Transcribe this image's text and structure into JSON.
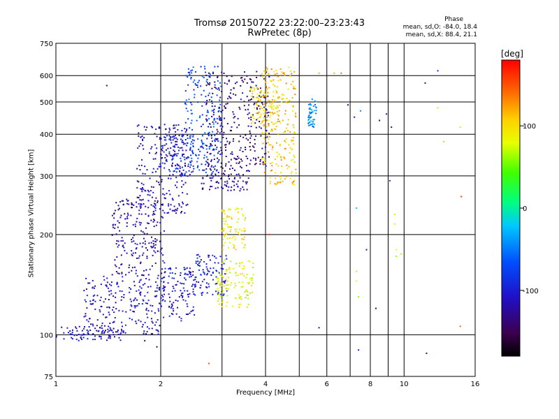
{
  "chart_data": {
    "type": "scatter",
    "title": "Tromsø 20150722 23:22:00–23:23:43",
    "subtitle": "RwPretec (8p)",
    "xlabel": "Frequency [MHz]",
    "ylabel": "Stationary phase Virtual Height [km]",
    "xscale": "log",
    "yscale": "log",
    "xlim": [
      1,
      16
    ],
    "ylim": [
      75,
      750
    ],
    "x_ticks": [
      "1",
      "2",
      "4",
      "6",
      "8",
      "10",
      "16"
    ],
    "x_tick_values": [
      1,
      2,
      4,
      6,
      8,
      10,
      16
    ],
    "y_ticks": [
      "75",
      "100",
      "200",
      "300",
      "400",
      "500",
      "600",
      "750"
    ],
    "y_tick_values": [
      75,
      100,
      200,
      300,
      400,
      500,
      600,
      750
    ],
    "grid": true,
    "phase_legend": {
      "title": "Phase",
      "o_line": "mean, sd,O: -84.0, 18.4",
      "x_line": "mean, sd,X:  88.4, 21.1"
    },
    "colorbar": {
      "unit": "[deg]",
      "range": [
        -180,
        180
      ],
      "ticks": [
        "100",
        "0",
        "-100"
      ],
      "tick_values": [
        100,
        0,
        -100
      ]
    },
    "clusters": [
      {
        "phase": -110,
        "x": [
          1.0,
          1.55
        ],
        "y": [
          96,
          106
        ]
      },
      {
        "phase": -110,
        "x": [
          1.2,
          2.05
        ],
        "y": [
          100,
          150
        ]
      },
      {
        "phase": -120,
        "x": [
          1.45,
          2.05
        ],
        "y": [
          150,
          260
        ]
      },
      {
        "phase": -115,
        "x": [
          1.7,
          2.4
        ],
        "y": [
          230,
          430
        ]
      },
      {
        "phase": -105,
        "x": [
          2.0,
          2.5
        ],
        "y": [
          110,
          160
        ]
      },
      {
        "phase": -95,
        "x": [
          2.0,
          2.5
        ],
        "y": [
          300,
          400
        ]
      },
      {
        "phase": -75,
        "x": [
          2.35,
          3.0
        ],
        "y": [
          300,
          640
        ]
      },
      {
        "phase": -130,
        "x": [
          2.6,
          3.6
        ],
        "y": [
          270,
          320
        ]
      },
      {
        "phase": -135,
        "x": [
          2.7,
          4.1
        ],
        "y": [
          320,
          620
        ]
      },
      {
        "phase": -100,
        "x": [
          2.5,
          3.1
        ],
        "y": [
          130,
          175
        ]
      },
      {
        "phase": 85,
        "x": [
          2.9,
          3.7
        ],
        "y": [
          120,
          170
        ]
      },
      {
        "phase": 95,
        "x": [
          3.0,
          3.5
        ],
        "y": [
          180,
          240
        ]
      },
      {
        "phase": 110,
        "x": [
          3.9,
          4.9
        ],
        "y": [
          280,
          640
        ]
      },
      {
        "phase": 100,
        "x": [
          3.6,
          4.4
        ],
        "y": [
          420,
          560
        ]
      },
      {
        "phase": -40,
        "x": [
          5.3,
          5.6
        ],
        "y": [
          420,
          520
        ]
      }
    ],
    "sparse_points": [
      {
        "x": 1.4,
        "y": 560,
        "phase": -130
      },
      {
        "x": 1.8,
        "y": 96,
        "phase": -150
      },
      {
        "x": 1.95,
        "y": 92,
        "phase": -150
      },
      {
        "x": 2.75,
        "y": 82,
        "phase": 150
      },
      {
        "x": 4.1,
        "y": 200,
        "phase": 160
      },
      {
        "x": 5.7,
        "y": 105,
        "phase": -120
      },
      {
        "x": 5.7,
        "y": 610,
        "phase": 120
      },
      {
        "x": 6.3,
        "y": 610,
        "phase": 120
      },
      {
        "x": 6.6,
        "y": 610,
        "phase": 140
      },
      {
        "x": 6.9,
        "y": 490,
        "phase": -130
      },
      {
        "x": 7.2,
        "y": 450,
        "phase": -110
      },
      {
        "x": 7.4,
        "y": 90,
        "phase": -100
      },
      {
        "x": 7.5,
        "y": 470,
        "phase": -40
      },
      {
        "x": 7.3,
        "y": 240,
        "phase": -20
      },
      {
        "x": 7.3,
        "y": 155,
        "phase": 100
      },
      {
        "x": 7.3,
        "y": 145,
        "phase": 80
      },
      {
        "x": 7.4,
        "y": 130,
        "phase": 60
      },
      {
        "x": 7.8,
        "y": 180,
        "phase": -120
      },
      {
        "x": 8.3,
        "y": 120,
        "phase": -120
      },
      {
        "x": 8.5,
        "y": 440,
        "phase": -140
      },
      {
        "x": 8.9,
        "y": 460,
        "phase": -120
      },
      {
        "x": 9.2,
        "y": 420,
        "phase": -130
      },
      {
        "x": 9.1,
        "y": 290,
        "phase": -90
      },
      {
        "x": 9.4,
        "y": 230,
        "phase": 90
      },
      {
        "x": 9.4,
        "y": 215,
        "phase": 70
      },
      {
        "x": 9.5,
        "y": 180,
        "phase": 80
      },
      {
        "x": 9.5,
        "y": 172,
        "phase": 60
      },
      {
        "x": 9.8,
        "y": 175,
        "phase": 100
      },
      {
        "x": 11.5,
        "y": 570,
        "phase": -120
      },
      {
        "x": 11.6,
        "y": 88,
        "phase": -130
      },
      {
        "x": 12.5,
        "y": 620,
        "phase": -90
      },
      {
        "x": 12.5,
        "y": 480,
        "phase": 100
      },
      {
        "x": 13.0,
        "y": 380,
        "phase": 110
      },
      {
        "x": 14.5,
        "y": 420,
        "phase": 100
      },
      {
        "x": 14.6,
        "y": 260,
        "phase": 160
      },
      {
        "x": 14.5,
        "y": 106,
        "phase": 140
      }
    ]
  }
}
